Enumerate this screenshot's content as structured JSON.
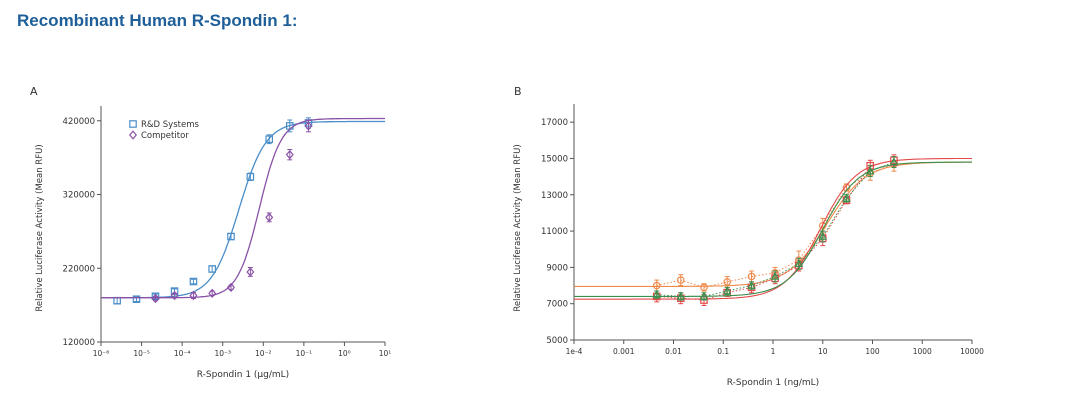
{
  "page": {
    "title": "Recombinant Human R-Spondin 1:"
  },
  "colors": {
    "title": "#1f5f99",
    "rnd": "#4a8ec9",
    "competitor": "#8a52a6",
    "b_orange": "#f08a4b",
    "b_red": "#e34a4a",
    "b_green": "#3b8f4e"
  },
  "chart_data": [
    {
      "panel": "A",
      "type": "scatter",
      "xscale": "log",
      "xlabel": "R-Spondin 1 (μg/mL)",
      "ylabel": "Relative Luciferase Activity (Mean RFU)",
      "xlim": [
        1e-06,
        10
      ],
      "ylim": [
        120000,
        440000
      ],
      "x_ticks": [
        "10⁻⁶",
        "10⁻⁵",
        "10⁻⁴",
        "10⁻³",
        "10⁻²",
        "10⁻¹",
        "10⁰",
        "10¹"
      ],
      "y_ticks": [
        "120000",
        "220000",
        "320000",
        "420000"
      ],
      "legend": "top-left",
      "series": [
        {
          "name": "R&D Systems",
          "marker": "square",
          "color": "#4a8ec9",
          "x": [
            2.5e-06,
            7.5e-06,
            2.2e-05,
            6.5e-05,
            0.00019,
            0.00055,
            0.0016,
            0.0048,
            0.014,
            0.045,
            0.13
          ],
          "y": [
            176000,
            178000,
            182000,
            189000,
            202000,
            219000,
            263000,
            344000,
            395000,
            413000,
            417000
          ],
          "err": [
            4000,
            3000,
            3000,
            3000,
            3000,
            4000,
            4000,
            5000,
            6000,
            8000,
            7000
          ],
          "fit": {
            "bottom": 180000,
            "top": 419000,
            "ec50": 0.0025,
            "hill": 1.3
          }
        },
        {
          "name": "Competitor",
          "marker": "diamond",
          "color": "#8a52a6",
          "x": [
            2.2e-05,
            6.5e-05,
            0.00019,
            0.00055,
            0.0016,
            0.0048,
            0.014,
            0.045,
            0.13
          ],
          "y": [
            179000,
            183000,
            183000,
            186000,
            194000,
            215000,
            289000,
            374000,
            413000
          ],
          "err": [
            3000,
            3000,
            4000,
            3000,
            3000,
            6000,
            6000,
            7000,
            8000
          ],
          "fit": {
            "bottom": 180000,
            "top": 423000,
            "ec50": 0.008,
            "hill": 1.6
          }
        }
      ]
    },
    {
      "panel": "B",
      "type": "scatter",
      "xscale": "log",
      "xlabel": "R-Spondin 1 (ng/mL)",
      "ylabel": "Relative Luciferase Activity (Mean RFU)",
      "xlim": [
        0.0001,
        10000
      ],
      "ylim": [
        5000,
        18000
      ],
      "x_ticks": [
        "1e-4",
        "0.001",
        "0.01",
        "0.1",
        "1",
        "10",
        "100",
        "1000",
        "10000"
      ],
      "y_ticks": [
        "5000",
        "7000",
        "9000",
        "11000",
        "13000",
        "15000",
        "17000"
      ],
      "series": [
        {
          "marker": "circle",
          "color": "#f08a4b",
          "x": [
            0.0046,
            0.014,
            0.041,
            0.12,
            0.37,
            1.1,
            3.3,
            10,
            30,
            90,
            270
          ],
          "y": [
            8000,
            8300,
            7900,
            8200,
            8500,
            8700,
            9400,
            11300,
            13400,
            14200,
            14700
          ],
          "err": [
            300,
            300,
            200,
            300,
            300,
            300,
            500,
            400,
            200,
            400,
            400
          ],
          "fit": {
            "bottom": 7950,
            "top": 14800,
            "ec50": 12,
            "hill": 1.1
          }
        },
        {
          "marker": "square",
          "color": "#e34a4a",
          "x": [
            0.0046,
            0.014,
            0.041,
            0.12,
            0.37,
            1.1,
            3.3,
            10,
            30,
            90,
            270
          ],
          "y": [
            7400,
            7300,
            7200,
            7600,
            7900,
            8400,
            9100,
            10600,
            12700,
            14600,
            14900
          ],
          "err": [
            300,
            300,
            300,
            200,
            300,
            300,
            300,
            400,
            200,
            300,
            300
          ],
          "fit": {
            "bottom": 7250,
            "top": 15000,
            "ec50": 9,
            "hill": 1.2
          }
        },
        {
          "marker": "triangle",
          "color": "#3b8f4e",
          "x": [
            0.0046,
            0.014,
            0.041,
            0.12,
            0.37,
            1.1,
            3.3,
            10,
            30,
            90,
            270
          ],
          "y": [
            7500,
            7400,
            7400,
            7700,
            8000,
            8500,
            9200,
            10700,
            12800,
            14300,
            14800
          ],
          "err": [
            200,
            200,
            200,
            200,
            200,
            300,
            300,
            300,
            200,
            300,
            300
          ],
          "fit": {
            "bottom": 7400,
            "top": 14800,
            "ec50": 10,
            "hill": 1.2
          }
        }
      ]
    }
  ]
}
